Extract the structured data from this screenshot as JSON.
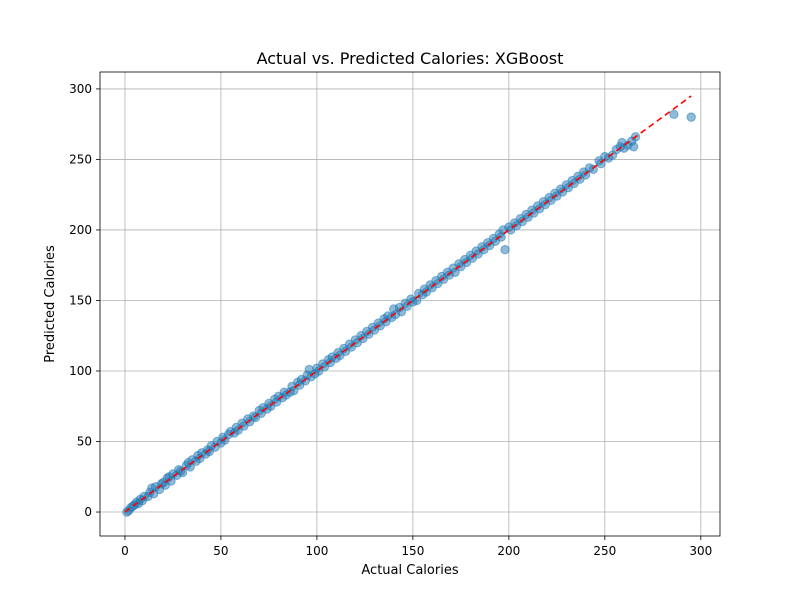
{
  "chart_data": {
    "type": "scatter",
    "title": "Actual vs. Predicted Calories: XGBoost",
    "xlabel": "Actual Calories",
    "ylabel": "Predicted Calories",
    "xlim": [
      -13,
      310
    ],
    "ylim": [
      -17,
      312
    ],
    "xticks": [
      0,
      50,
      100,
      150,
      200,
      250,
      300
    ],
    "yticks": [
      0,
      50,
      100,
      150,
      200,
      250,
      300
    ],
    "xtick_labels": [
      "0",
      "50",
      "100",
      "150",
      "200",
      "250",
      "300"
    ],
    "ytick_labels": [
      "0",
      "50",
      "100",
      "150",
      "200",
      "250",
      "300"
    ],
    "grid": true,
    "reference_line": {
      "style": "dashed",
      "color": "#ff0000",
      "x": [
        0,
        295
      ],
      "y": [
        0,
        295
      ]
    },
    "series": [
      {
        "color": "#1f77b4",
        "points": [
          [
            1,
            0
          ],
          [
            2,
            1
          ],
          [
            3,
            3
          ],
          [
            4,
            4
          ],
          [
            5,
            5
          ],
          [
            6,
            7
          ],
          [
            7,
            6
          ],
          [
            8,
            9
          ],
          [
            9,
            8
          ],
          [
            10,
            11
          ],
          [
            12,
            11
          ],
          [
            13,
            14
          ],
          [
            14,
            17
          ],
          [
            15,
            13
          ],
          [
            16,
            18
          ],
          [
            18,
            16
          ],
          [
            19,
            20
          ],
          [
            20,
            21
          ],
          [
            21,
            19
          ],
          [
            22,
            24
          ],
          [
            23,
            25
          ],
          [
            24,
            22
          ],
          [
            25,
            27
          ],
          [
            27,
            26
          ],
          [
            28,
            30
          ],
          [
            29,
            29
          ],
          [
            30,
            28
          ],
          [
            32,
            33
          ],
          [
            33,
            35
          ],
          [
            34,
            32
          ],
          [
            35,
            37
          ],
          [
            37,
            36
          ],
          [
            38,
            40
          ],
          [
            39,
            38
          ],
          [
            40,
            42
          ],
          [
            42,
            41
          ],
          [
            43,
            44
          ],
          [
            44,
            43
          ],
          [
            45,
            47
          ],
          [
            47,
            46
          ],
          [
            48,
            50
          ],
          [
            50,
            49
          ],
          [
            51,
            53
          ],
          [
            52,
            51
          ],
          [
            54,
            55
          ],
          [
            55,
            57
          ],
          [
            57,
            56
          ],
          [
            58,
            60
          ],
          [
            59,
            58
          ],
          [
            61,
            63
          ],
          [
            62,
            61
          ],
          [
            64,
            66
          ],
          [
            65,
            64
          ],
          [
            67,
            68
          ],
          [
            68,
            67
          ],
          [
            70,
            72
          ],
          [
            71,
            70
          ],
          [
            72,
            74
          ],
          [
            74,
            73
          ],
          [
            75,
            77
          ],
          [
            76,
            75
          ],
          [
            78,
            80
          ],
          [
            79,
            78
          ],
          [
            80,
            82
          ],
          [
            82,
            81
          ],
          [
            83,
            85
          ],
          [
            84,
            83
          ],
          [
            86,
            85
          ],
          [
            87,
            89
          ],
          [
            88,
            86
          ],
          [
            90,
            92
          ],
          [
            91,
            90
          ],
          [
            92,
            94
          ],
          [
            94,
            93
          ],
          [
            95,
            97
          ],
          [
            96,
            101
          ],
          [
            97,
            96
          ],
          [
            99,
            98
          ],
          [
            100,
            102
          ],
          [
            101,
            100
          ],
          [
            103,
            105
          ],
          [
            104,
            103
          ],
          [
            106,
            108
          ],
          [
            107,
            106
          ],
          [
            108,
            110
          ],
          [
            110,
            109
          ],
          [
            111,
            113
          ],
          [
            112,
            111
          ],
          [
            114,
            116
          ],
          [
            115,
            114
          ],
          [
            117,
            119
          ],
          [
            118,
            117
          ],
          [
            120,
            122
          ],
          [
            121,
            120
          ],
          [
            123,
            125
          ],
          [
            124,
            123
          ],
          [
            126,
            128
          ],
          [
            127,
            126
          ],
          [
            129,
            131
          ],
          [
            130,
            129
          ],
          [
            132,
            134
          ],
          [
            133,
            132
          ],
          [
            135,
            137
          ],
          [
            136,
            135
          ],
          [
            137,
            139
          ],
          [
            139,
            138
          ],
          [
            140,
            144
          ],
          [
            141,
            140
          ],
          [
            143,
            145
          ],
          [
            144,
            142
          ],
          [
            146,
            148
          ],
          [
            147,
            146
          ],
          [
            149,
            151
          ],
          [
            150,
            149
          ],
          [
            152,
            150
          ],
          [
            153,
            155
          ],
          [
            155,
            154
          ],
          [
            156,
            158
          ],
          [
            157,
            156
          ],
          [
            159,
            161
          ],
          [
            160,
            159
          ],
          [
            162,
            164
          ],
          [
            163,
            162
          ],
          [
            165,
            167
          ],
          [
            166,
            165
          ],
          [
            168,
            170
          ],
          [
            169,
            168
          ],
          [
            171,
            173
          ],
          [
            172,
            170
          ],
          [
            174,
            176
          ],
          [
            175,
            174
          ],
          [
            177,
            179
          ],
          [
            178,
            177
          ],
          [
            180,
            182
          ],
          [
            181,
            180
          ],
          [
            183,
            185
          ],
          [
            184,
            183
          ],
          [
            186,
            188
          ],
          [
            187,
            186
          ],
          [
            189,
            191
          ],
          [
            190,
            189
          ],
          [
            192,
            194
          ],
          [
            193,
            192
          ],
          [
            195,
            197
          ],
          [
            196,
            195
          ],
          [
            197,
            200
          ],
          [
            198,
            186
          ],
          [
            200,
            202
          ],
          [
            201,
            200
          ],
          [
            203,
            205
          ],
          [
            204,
            203
          ],
          [
            206,
            208
          ],
          [
            207,
            206
          ],
          [
            209,
            211
          ],
          [
            210,
            209
          ],
          [
            212,
            214
          ],
          [
            213,
            212
          ],
          [
            215,
            217
          ],
          [
            216,
            215
          ],
          [
            218,
            220
          ],
          [
            219,
            218
          ],
          [
            221,
            223
          ],
          [
            222,
            221
          ],
          [
            224,
            226
          ],
          [
            225,
            224
          ],
          [
            227,
            229
          ],
          [
            228,
            227
          ],
          [
            230,
            232
          ],
          [
            231,
            230
          ],
          [
            233,
            235
          ],
          [
            234,
            233
          ],
          [
            236,
            238
          ],
          [
            237,
            236
          ],
          [
            239,
            241
          ],
          [
            240,
            239
          ],
          [
            242,
            244
          ],
          [
            244,
            243
          ],
          [
            247,
            249
          ],
          [
            248,
            247
          ],
          [
            250,
            252
          ],
          [
            252,
            251
          ],
          [
            254,
            253
          ],
          [
            256,
            257
          ],
          [
            258,
            259
          ],
          [
            259,
            262
          ],
          [
            260,
            258
          ],
          [
            262,
            260
          ],
          [
            264,
            263
          ],
          [
            265,
            259
          ],
          [
            266,
            266
          ],
          [
            286,
            282
          ],
          [
            295,
            280
          ]
        ]
      }
    ]
  }
}
